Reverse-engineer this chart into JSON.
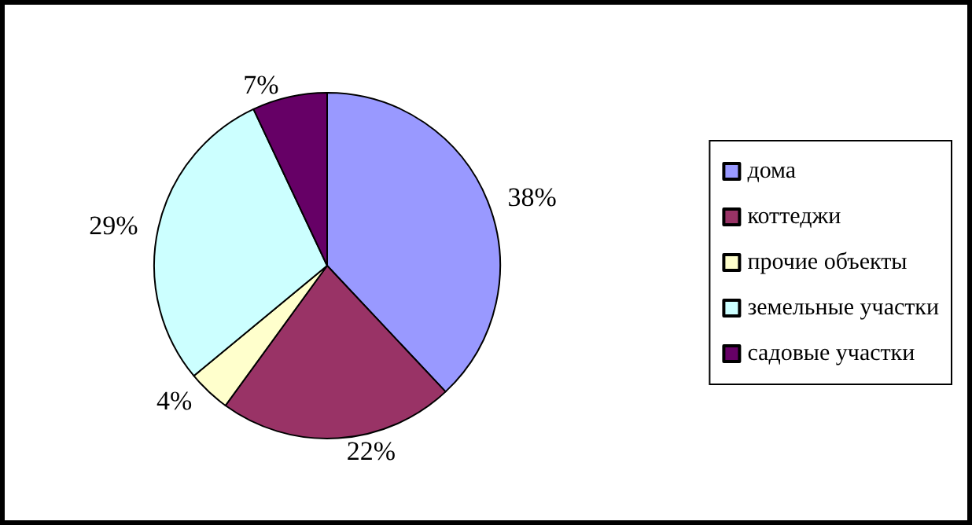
{
  "chart_data": {
    "type": "pie",
    "categories": [
      "дома",
      "коттеджи",
      "прочие объекты",
      "земельные участки",
      "садовые участки"
    ],
    "values": [
      38,
      22,
      4,
      29,
      7
    ],
    "colors": [
      "#9999ff",
      "#993366",
      "#ffffcc",
      "#ccffff",
      "#660066"
    ],
    "value_labels": [
      "38%",
      "22%",
      "4%",
      "29%",
      "7%"
    ],
    "legend": "right"
  }
}
